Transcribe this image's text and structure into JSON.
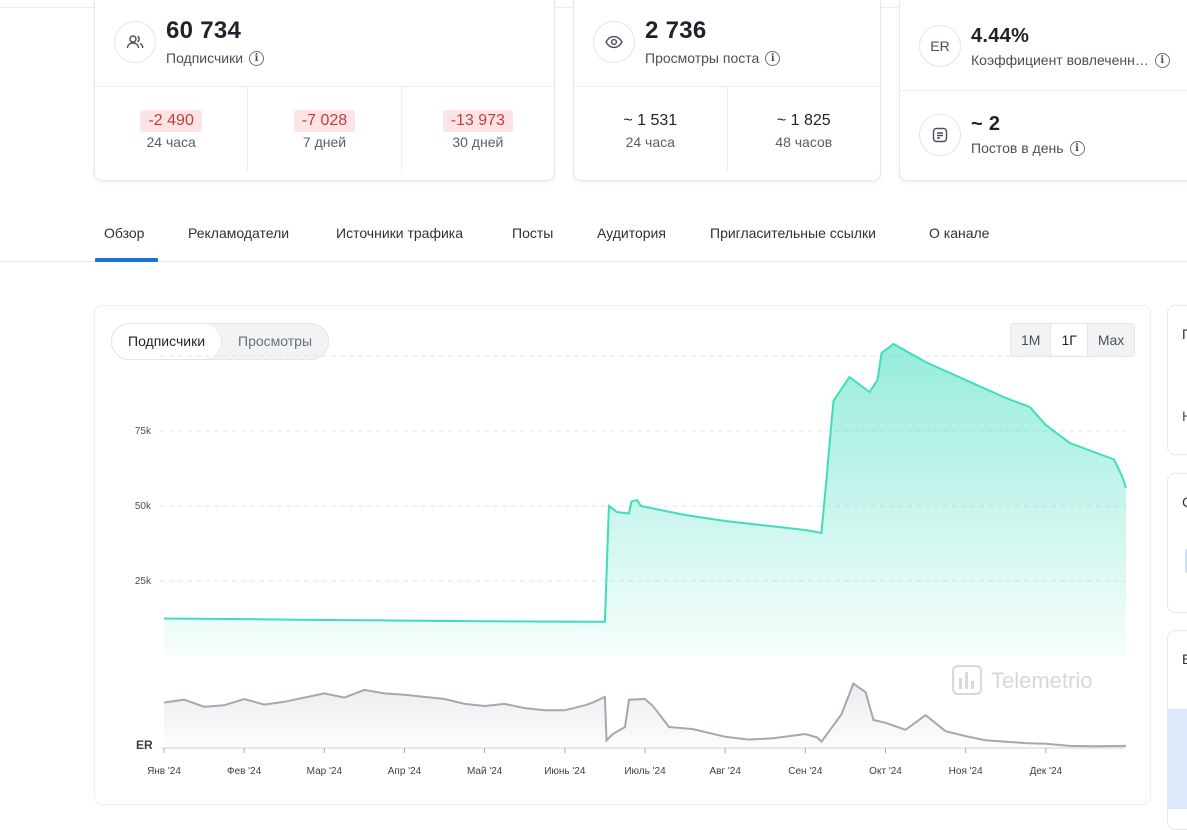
{
  "brand": {
    "colors": [
      "#e53935",
      "#fbc02d",
      "#43a047"
    ]
  },
  "stats": {
    "subscribers": {
      "icon": "users-icon",
      "value": "60 734",
      "label": "Подписчики",
      "changes": [
        {
          "value": "-2 490",
          "period": "24 часа"
        },
        {
          "value": "-7 028",
          "period": "7 дней"
        },
        {
          "value": "-13 973",
          "period": "30 дней"
        }
      ]
    },
    "views": {
      "icon": "eye-icon",
      "value": "2 736",
      "label": "Просмотры поста",
      "changes": [
        {
          "value": "~ 1 531",
          "period": "24 часа"
        },
        {
          "value": "~ 1 825",
          "period": "48 часов"
        }
      ]
    },
    "er": {
      "icon_text": "ER",
      "value": "4.44%",
      "label": "Коэффициент вовлеченн…"
    },
    "posts": {
      "value": "~ 2",
      "label": "Постов в день"
    }
  },
  "tabs": [
    "Обзор",
    "Рекламодатели",
    "Источники трафика",
    "Посты",
    "Аудитория",
    "Пригласительные ссылки",
    "О канале"
  ],
  "active_tab": "Обзор",
  "chart_controls": {
    "metric_toggle": [
      "Подписчики",
      "Просмотры"
    ],
    "active_metric": "Подписчики",
    "ranges": [
      "1М",
      "1Г",
      "Max"
    ],
    "active_range": "1Г"
  },
  "watermark": "Telemetrio",
  "side_cards": [
    "П",
    "Н",
    "С",
    "Е"
  ],
  "colors": {
    "accent": "#1a73d9",
    "series": "#3fddbd",
    "er_series": "#a4a9b0",
    "negative": "#c43d3d"
  },
  "chart_data": {
    "type": "area",
    "title": "",
    "series_name": "Подписчики",
    "ylim": [
      0,
      100000
    ],
    "yticks": [
      {
        "v": 25000,
        "label": "25k"
      },
      {
        "v": 50000,
        "label": "50k"
      },
      {
        "v": 75000,
        "label": "75k"
      }
    ],
    "xlim": [
      0,
      12
    ],
    "x_tick_labels": [
      "Янв '24",
      "Фев '24",
      "Мар '24",
      "Апр '24",
      "Май '24",
      "Июнь '24",
      "Июль '24",
      "Авг '24",
      "Сен '24",
      "Окт '24",
      "Ноя '24",
      "Дек '24"
    ],
    "points": [
      [
        0.0,
        12500
      ],
      [
        1.0,
        12300
      ],
      [
        2.0,
        12000
      ],
      [
        3.0,
        11800
      ],
      [
        4.0,
        11600
      ],
      [
        5.0,
        11450
      ],
      [
        5.5,
        11400
      ],
      [
        5.55,
        50000
      ],
      [
        5.65,
        48000
      ],
      [
        5.8,
        47500
      ],
      [
        5.83,
        51500
      ],
      [
        5.9,
        52000
      ],
      [
        5.95,
        50000
      ],
      [
        6.5,
        47000
      ],
      [
        7.0,
        45000
      ],
      [
        7.5,
        43500
      ],
      [
        8.0,
        42000
      ],
      [
        8.2,
        41000
      ],
      [
        8.25,
        55000
      ],
      [
        8.35,
        85000
      ],
      [
        8.55,
        93000
      ],
      [
        8.65,
        91000
      ],
      [
        8.8,
        88000
      ],
      [
        8.9,
        92000
      ],
      [
        8.95,
        101000
      ],
      [
        9.1,
        104000
      ],
      [
        9.5,
        98000
      ],
      [
        10.0,
        92000
      ],
      [
        10.5,
        86000
      ],
      [
        10.8,
        83000
      ],
      [
        11.0,
        77000
      ],
      [
        11.3,
        71000
      ],
      [
        11.7,
        67000
      ],
      [
        11.85,
        65500
      ],
      [
        11.95,
        60000
      ],
      [
        12.0,
        56000
      ]
    ],
    "er_series": {
      "name": "ER",
      "ylim": [
        0,
        10
      ],
      "points": [
        [
          0.0,
          6.5
        ],
        [
          0.25,
          6.9
        ],
        [
          0.5,
          5.9
        ],
        [
          0.75,
          6.1
        ],
        [
          1.0,
          7.0
        ],
        [
          1.25,
          6.2
        ],
        [
          1.5,
          6.6
        ],
        [
          1.75,
          7.2
        ],
        [
          2.0,
          7.8
        ],
        [
          2.25,
          7.2
        ],
        [
          2.5,
          8.3
        ],
        [
          2.75,
          7.8
        ],
        [
          3.0,
          7.6
        ],
        [
          3.25,
          7.3
        ],
        [
          3.5,
          7.0
        ],
        [
          3.75,
          6.3
        ],
        [
          4.0,
          6.0
        ],
        [
          4.25,
          6.3
        ],
        [
          4.5,
          5.7
        ],
        [
          4.75,
          5.4
        ],
        [
          5.0,
          5.4
        ],
        [
          5.25,
          6.1
        ],
        [
          5.35,
          6.5
        ],
        [
          5.5,
          7.3
        ],
        [
          5.52,
          1.1
        ],
        [
          5.6,
          2.0
        ],
        [
          5.75,
          3.0
        ],
        [
          5.8,
          6.9
        ],
        [
          6.0,
          7.0
        ],
        [
          6.1,
          6.0
        ],
        [
          6.3,
          3.0
        ],
        [
          6.6,
          2.7
        ],
        [
          7.0,
          1.6
        ],
        [
          7.3,
          1.2
        ],
        [
          7.6,
          1.4
        ],
        [
          8.0,
          2.0
        ],
        [
          8.15,
          1.5
        ],
        [
          8.2,
          0.9
        ],
        [
          8.45,
          4.8
        ],
        [
          8.6,
          9.2
        ],
        [
          8.75,
          8.0
        ],
        [
          8.85,
          4.0
        ],
        [
          9.0,
          3.6
        ],
        [
          9.25,
          2.6
        ],
        [
          9.5,
          4.7
        ],
        [
          9.75,
          2.4
        ],
        [
          10.0,
          1.7
        ],
        [
          10.25,
          1.1
        ],
        [
          10.5,
          0.9
        ],
        [
          10.75,
          0.7
        ],
        [
          11.0,
          0.6
        ],
        [
          11.3,
          0.3
        ],
        [
          11.6,
          0.25
        ],
        [
          12.0,
          0.3
        ]
      ]
    }
  }
}
